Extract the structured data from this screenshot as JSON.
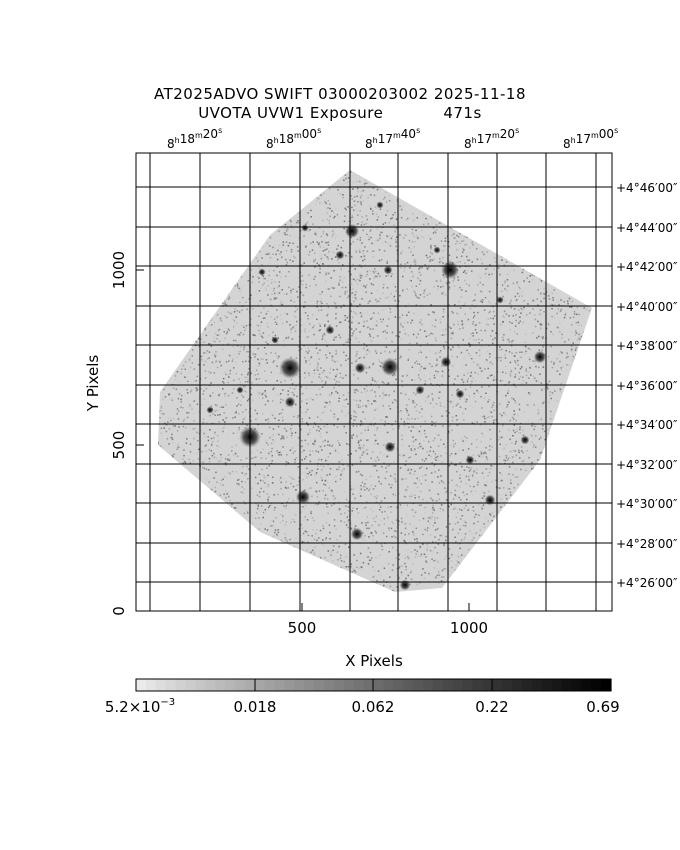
{
  "header": {
    "title_line1": "AT2025ADVO SWIFT 03000203002 2025-11-18",
    "title_line2": "UVOTA UVW1 Exposure",
    "exposure": "471s"
  },
  "axes": {
    "xlabel": "X Pixels",
    "ylabel": "Y Pixels",
    "x_ticks": [
      "500",
      "1000"
    ],
    "y_ticks": [
      "0",
      "500",
      "1000"
    ],
    "ra_ticks": [
      {
        "h": "8",
        "m": "18",
        "s": "20"
      },
      {
        "h": "8",
        "m": "18",
        "s": "00"
      },
      {
        "h": "8",
        "m": "17",
        "s": "40"
      },
      {
        "h": "8",
        "m": "17",
        "s": "20"
      },
      {
        "h": "8",
        "m": "17",
        "s": "00"
      }
    ],
    "dec_ticks": [
      {
        "deg": "+4",
        "min": "46",
        "sec": "00"
      },
      {
        "deg": "+4",
        "min": "44",
        "sec": "00"
      },
      {
        "deg": "+4",
        "min": "42",
        "sec": "00"
      },
      {
        "deg": "+4",
        "min": "40",
        "sec": "00"
      },
      {
        "deg": "+4",
        "min": "38",
        "sec": "00"
      },
      {
        "deg": "+4",
        "min": "36",
        "sec": "00"
      },
      {
        "deg": "+4",
        "min": "34",
        "sec": "00"
      },
      {
        "deg": "+4",
        "min": "32",
        "sec": "00"
      },
      {
        "deg": "+4",
        "min": "30",
        "sec": "00"
      },
      {
        "deg": "+4",
        "min": "28",
        "sec": "00"
      },
      {
        "deg": "+4",
        "min": "26",
        "sec": "00"
      }
    ]
  },
  "colorbar": {
    "labels": [
      "5.2×10",
      "0.018",
      "0.062",
      "0.22",
      "0.69"
    ],
    "first_exponent": "−3"
  },
  "colors": {
    "frame": "#000000",
    "grid": "#000000",
    "background_noise": "#9a9a9a",
    "star": "#1a1a1a"
  }
}
